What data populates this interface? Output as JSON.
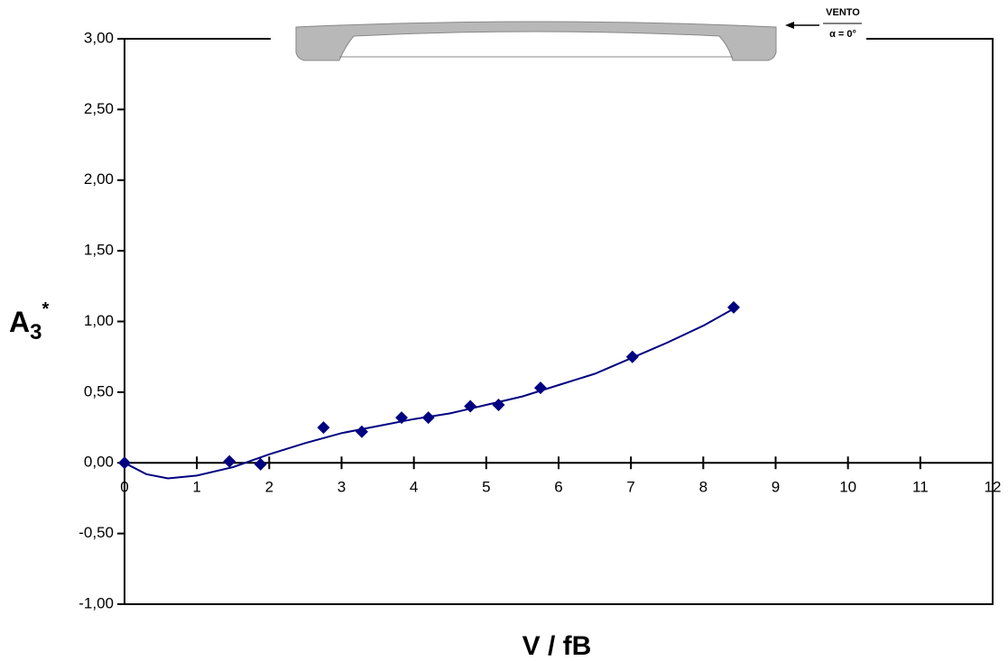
{
  "chart_data": {
    "type": "scatter",
    "xlabel": "V / fB",
    "ylabel": {
      "text": "A",
      "subscript": "3",
      "superscript": "*"
    },
    "inset": {
      "label": "VENTO",
      "angle": "α = 0°"
    },
    "x": [
      0,
      1.45,
      1.88,
      2.75,
      3.28,
      3.83,
      4.2,
      4.78,
      5.17,
      5.75,
      7.02,
      8.42
    ],
    "values": [
      0,
      0.01,
      -0.01,
      0.25,
      0.22,
      0.32,
      0.32,
      0.4,
      0.41,
      0.53,
      0.75,
      1.1
    ],
    "color": "#000080",
    "trendline": {
      "x": [
        0,
        0.3,
        0.6,
        1.0,
        1.5,
        2.0,
        2.5,
        3.0,
        3.5,
        4.0,
        4.5,
        5.0,
        5.5,
        6.0,
        6.5,
        7.0,
        7.5,
        8.0,
        8.42
      ],
      "values": [
        0,
        -0.08,
        -0.11,
        -0.09,
        -0.03,
        0.06,
        0.14,
        0.21,
        0.26,
        0.31,
        0.35,
        0.41,
        0.47,
        0.55,
        0.63,
        0.74,
        0.85,
        0.97,
        1.09
      ]
    },
    "xlim": [
      0,
      12
    ],
    "xticks": [
      0,
      1,
      2,
      3,
      4,
      5,
      6,
      7,
      8,
      9,
      10,
      11,
      12
    ],
    "ylim": [
      -1,
      3
    ],
    "yticks": [
      {
        "value": -1,
        "label": "-1,00"
      },
      {
        "value": -0.5,
        "label": "-0,50"
      },
      {
        "value": 0,
        "label": "0,00"
      },
      {
        "value": 0.5,
        "label": "0,50"
      },
      {
        "value": 1,
        "label": "1,00"
      },
      {
        "value": 1.5,
        "label": "1,50"
      },
      {
        "value": 2,
        "label": "2,00"
      },
      {
        "value": 2.5,
        "label": "2,50"
      },
      {
        "value": 3,
        "label": "3,00"
      }
    ]
  }
}
